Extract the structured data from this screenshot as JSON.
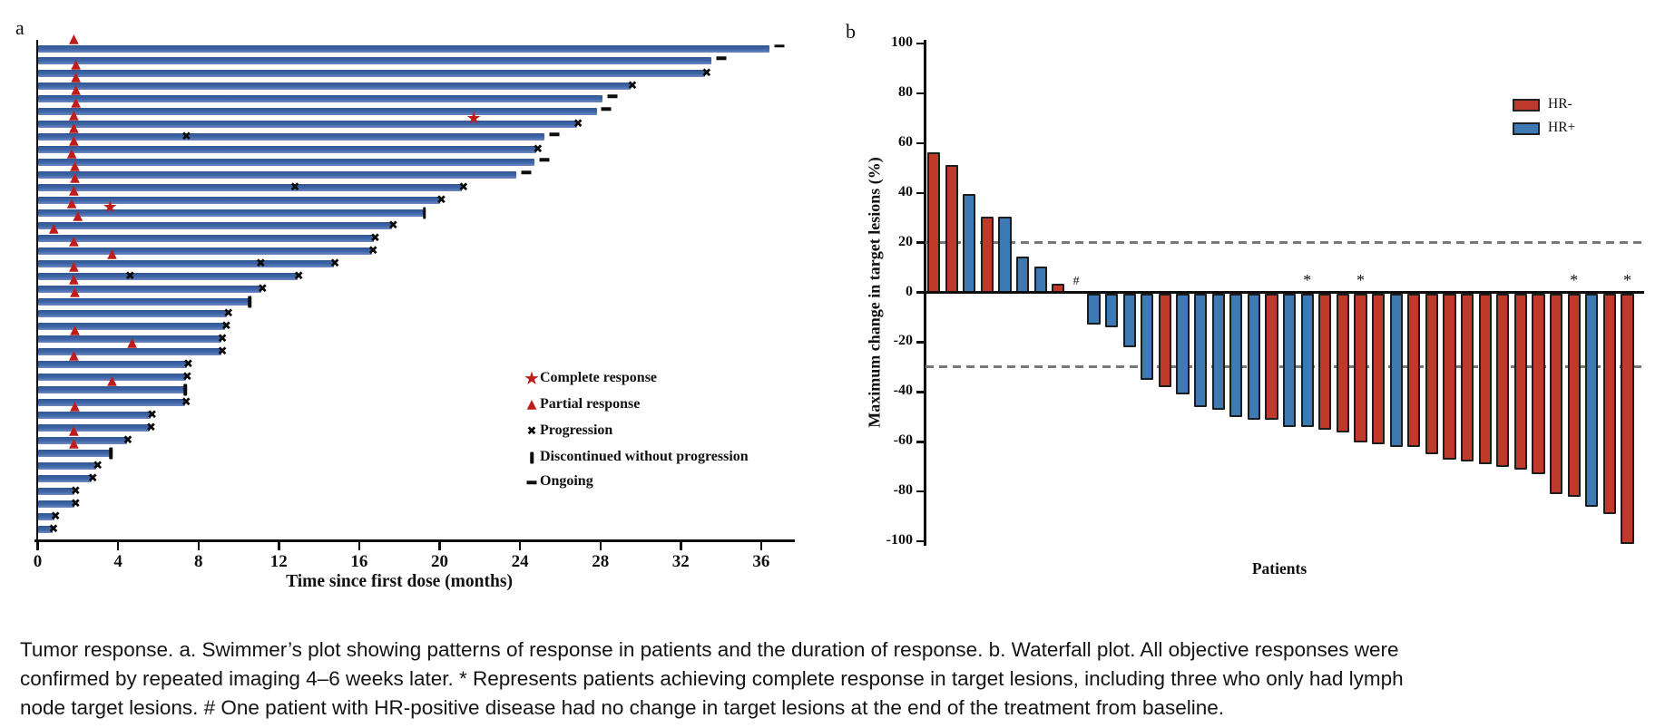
{
  "caption": "Tumor response. a. Swimmer’s plot showing patterns of response in patients and the duration of response. b. Waterfall plot. All objective responses were confirmed by repeated imaging 4–6 weeks later. * Represents patients achieving complete response in target lesions, including three who only had lymph node target lesions. # One patient with HR-positive disease had no change in target lesions at the end of the treatment from baseline.",
  "colors": {
    "swimmer_bar": "#3a5f9f",
    "response_marker": "#c11c1c",
    "event_marker": "#0d0d0d",
    "hr_negative": "#bf3a2b",
    "hr_positive": "#3d79b2",
    "reference_line": "#787878"
  },
  "chart_data": [
    {
      "type": "swimmer",
      "panel_label": "a",
      "xlabel": "Time since first dose (months)",
      "x_ticks": [
        0,
        4,
        8,
        12,
        16,
        20,
        24,
        28,
        32,
        36
      ],
      "xlim": [
        0,
        37.6
      ],
      "unit": "months",
      "legend": [
        {
          "symbol": "star",
          "label": "Complete response"
        },
        {
          "symbol": "triangle",
          "label": "Partial response"
        },
        {
          "symbol": "x",
          "label": "Progression"
        },
        {
          "symbol": "pipe",
          "label": "Discontinued without progression"
        },
        {
          "symbol": "dash",
          "label": "Ongoing"
        }
      ],
      "bars": [
        {
          "duration": 36.4,
          "end": "ongoing",
          "partial_response_at": 1.8,
          "complete_response_at": null,
          "progression_at": []
        },
        {
          "duration": 33.5,
          "end": "ongoing",
          "partial_response_at": null,
          "complete_response_at": null,
          "progression_at": []
        },
        {
          "duration": 33.2,
          "end": "progression",
          "partial_response_at": 1.9,
          "complete_response_at": null,
          "progression_at": []
        },
        {
          "duration": 29.5,
          "end": "progression",
          "partial_response_at": 1.9,
          "complete_response_at": null,
          "progression_at": []
        },
        {
          "duration": 28.1,
          "end": "ongoing",
          "partial_response_at": 1.9,
          "complete_response_at": null,
          "progression_at": []
        },
        {
          "duration": 27.8,
          "end": "ongoing",
          "partial_response_at": 1.9,
          "complete_response_at": null,
          "progression_at": []
        },
        {
          "duration": 26.8,
          "end": "progression",
          "partial_response_at": 1.8,
          "complete_response_at": 21.7,
          "progression_at": []
        },
        {
          "duration": 25.2,
          "end": "ongoing",
          "partial_response_at": 1.8,
          "complete_response_at": null,
          "progression_at": [
            7.4
          ]
        },
        {
          "duration": 24.8,
          "end": "progression",
          "partial_response_at": 1.8,
          "complete_response_at": null,
          "progression_at": []
        },
        {
          "duration": 24.7,
          "end": "ongoing",
          "partial_response_at": 1.7,
          "complete_response_at": null,
          "progression_at": []
        },
        {
          "duration": 23.8,
          "end": "ongoing",
          "partial_response_at": 1.85,
          "complete_response_at": null,
          "progression_at": []
        },
        {
          "duration": 21.1,
          "end": "progression",
          "partial_response_at": 1.85,
          "complete_response_at": null,
          "progression_at": [
            12.8
          ]
        },
        {
          "duration": 20.0,
          "end": "progression",
          "partial_response_at": 1.8,
          "complete_response_at": null,
          "progression_at": []
        },
        {
          "duration": 19.2,
          "end": "discontinued",
          "partial_response_at": 1.7,
          "complete_response_at": 3.6,
          "progression_at": []
        },
        {
          "duration": 17.6,
          "end": "progression",
          "partial_response_at": 2.0,
          "complete_response_at": null,
          "progression_at": []
        },
        {
          "duration": 16.7,
          "end": "progression",
          "partial_response_at": 0.8,
          "complete_response_at": null,
          "progression_at": []
        },
        {
          "duration": 16.6,
          "end": "progression",
          "partial_response_at": 1.8,
          "complete_response_at": null,
          "progression_at": []
        },
        {
          "duration": 14.7,
          "end": "progression",
          "partial_response_at": 3.7,
          "complete_response_at": null,
          "progression_at": [
            11.1
          ]
        },
        {
          "duration": 12.9,
          "end": "progression",
          "partial_response_at": 1.8,
          "complete_response_at": null,
          "progression_at": [
            4.6
          ]
        },
        {
          "duration": 11.1,
          "end": "progression",
          "partial_response_at": 1.8,
          "complete_response_at": null,
          "progression_at": []
        },
        {
          "duration": 10.5,
          "end": "discontinued",
          "partial_response_at": 1.85,
          "complete_response_at": null,
          "progression_at": []
        },
        {
          "duration": 9.4,
          "end": "progression",
          "partial_response_at": null,
          "complete_response_at": null,
          "progression_at": []
        },
        {
          "duration": 9.3,
          "end": "progression",
          "partial_response_at": null,
          "complete_response_at": null,
          "progression_at": []
        },
        {
          "duration": 9.1,
          "end": "progression",
          "partial_response_at": 1.85,
          "complete_response_at": null,
          "progression_at": []
        },
        {
          "duration": 9.1,
          "end": "progression",
          "partial_response_at": 4.7,
          "complete_response_at": null,
          "progression_at": []
        },
        {
          "duration": 7.4,
          "end": "progression",
          "partial_response_at": 1.8,
          "complete_response_at": null,
          "progression_at": []
        },
        {
          "duration": 7.35,
          "end": "progression",
          "partial_response_at": null,
          "complete_response_at": null,
          "progression_at": []
        },
        {
          "duration": 7.3,
          "end": "discontinued",
          "partial_response_at": 3.7,
          "complete_response_at": null,
          "progression_at": []
        },
        {
          "duration": 7.3,
          "end": "progression",
          "partial_response_at": null,
          "complete_response_at": null,
          "progression_at": []
        },
        {
          "duration": 5.6,
          "end": "progression",
          "partial_response_at": 1.85,
          "complete_response_at": null,
          "progression_at": []
        },
        {
          "duration": 5.55,
          "end": "progression",
          "partial_response_at": null,
          "complete_response_at": null,
          "progression_at": []
        },
        {
          "duration": 4.4,
          "end": "progression",
          "partial_response_at": 1.8,
          "complete_response_at": null,
          "progression_at": []
        },
        {
          "duration": 3.6,
          "end": "discontinued",
          "partial_response_at": 1.8,
          "complete_response_at": null,
          "progression_at": []
        },
        {
          "duration": 2.9,
          "end": "progression",
          "partial_response_at": null,
          "complete_response_at": null,
          "progression_at": []
        },
        {
          "duration": 2.65,
          "end": "progression",
          "partial_response_at": null,
          "complete_response_at": null,
          "progression_at": []
        },
        {
          "duration": 1.8,
          "end": "progression",
          "partial_response_at": null,
          "complete_response_at": null,
          "progression_at": []
        },
        {
          "duration": 1.8,
          "end": "progression",
          "partial_response_at": null,
          "complete_response_at": null,
          "progression_at": []
        },
        {
          "duration": 0.8,
          "end": "progression",
          "partial_response_at": null,
          "complete_response_at": null,
          "progression_at": []
        },
        {
          "duration": 0.7,
          "end": "progression",
          "partial_response_at": null,
          "complete_response_at": null,
          "progression_at": []
        }
      ]
    },
    {
      "type": "waterfall",
      "panel_label": "b",
      "ylabel": "Maximum change in target lesions (%)",
      "xlabel": "Patients",
      "y_ticks": [
        100,
        80,
        60,
        40,
        20,
        0,
        -20,
        -40,
        -60,
        -80,
        -100
      ],
      "ylim": [
        -100,
        100
      ],
      "reference_lines": [
        20,
        -30
      ],
      "legend": [
        {
          "label": "HR-",
          "group": "HR-",
          "color": "#bf3a2b"
        },
        {
          "label": "HR+",
          "group": "HR+",
          "color": "#3d79b2"
        }
      ],
      "bars": [
        {
          "value": 56,
          "group": "HR-"
        },
        {
          "value": 51,
          "group": "HR-"
        },
        {
          "value": 39,
          "group": "HR+"
        },
        {
          "value": 30,
          "group": "HR-"
        },
        {
          "value": 30,
          "group": "HR+"
        },
        {
          "value": 14,
          "group": "HR+"
        },
        {
          "value": 10,
          "group": "HR+"
        },
        {
          "value": 3,
          "group": "HR-"
        },
        {
          "value": 0,
          "group": "HR+",
          "annotation": "#"
        },
        {
          "value": -12,
          "group": "HR+"
        },
        {
          "value": -13,
          "group": "HR+"
        },
        {
          "value": -21,
          "group": "HR+"
        },
        {
          "value": -34,
          "group": "HR+"
        },
        {
          "value": -37,
          "group": "HR-"
        },
        {
          "value": -40,
          "group": "HR+"
        },
        {
          "value": -45,
          "group": "HR+"
        },
        {
          "value": -46,
          "group": "HR+"
        },
        {
          "value": -49,
          "group": "HR+"
        },
        {
          "value": -50,
          "group": "HR+"
        },
        {
          "value": -50,
          "group": "HR-"
        },
        {
          "value": -53,
          "group": "HR+"
        },
        {
          "value": -53,
          "group": "HR+",
          "annotation": "*"
        },
        {
          "value": -54,
          "group": "HR-"
        },
        {
          "value": -55,
          "group": "HR-"
        },
        {
          "value": -59,
          "group": "HR-",
          "annotation": "*"
        },
        {
          "value": -60,
          "group": "HR-"
        },
        {
          "value": -61,
          "group": "HR+"
        },
        {
          "value": -61,
          "group": "HR-"
        },
        {
          "value": -64,
          "group": "HR-"
        },
        {
          "value": -66,
          "group": "HR-"
        },
        {
          "value": -67,
          "group": "HR-"
        },
        {
          "value": -68,
          "group": "HR-"
        },
        {
          "value": -69,
          "group": "HR-"
        },
        {
          "value": -70,
          "group": "HR-"
        },
        {
          "value": -72,
          "group": "HR-"
        },
        {
          "value": -80,
          "group": "HR-"
        },
        {
          "value": -81,
          "group": "HR-",
          "annotation": "*"
        },
        {
          "value": -85,
          "group": "HR+"
        },
        {
          "value": -88,
          "group": "HR-"
        },
        {
          "value": -100,
          "group": "HR-",
          "annotation": "*"
        }
      ]
    }
  ]
}
